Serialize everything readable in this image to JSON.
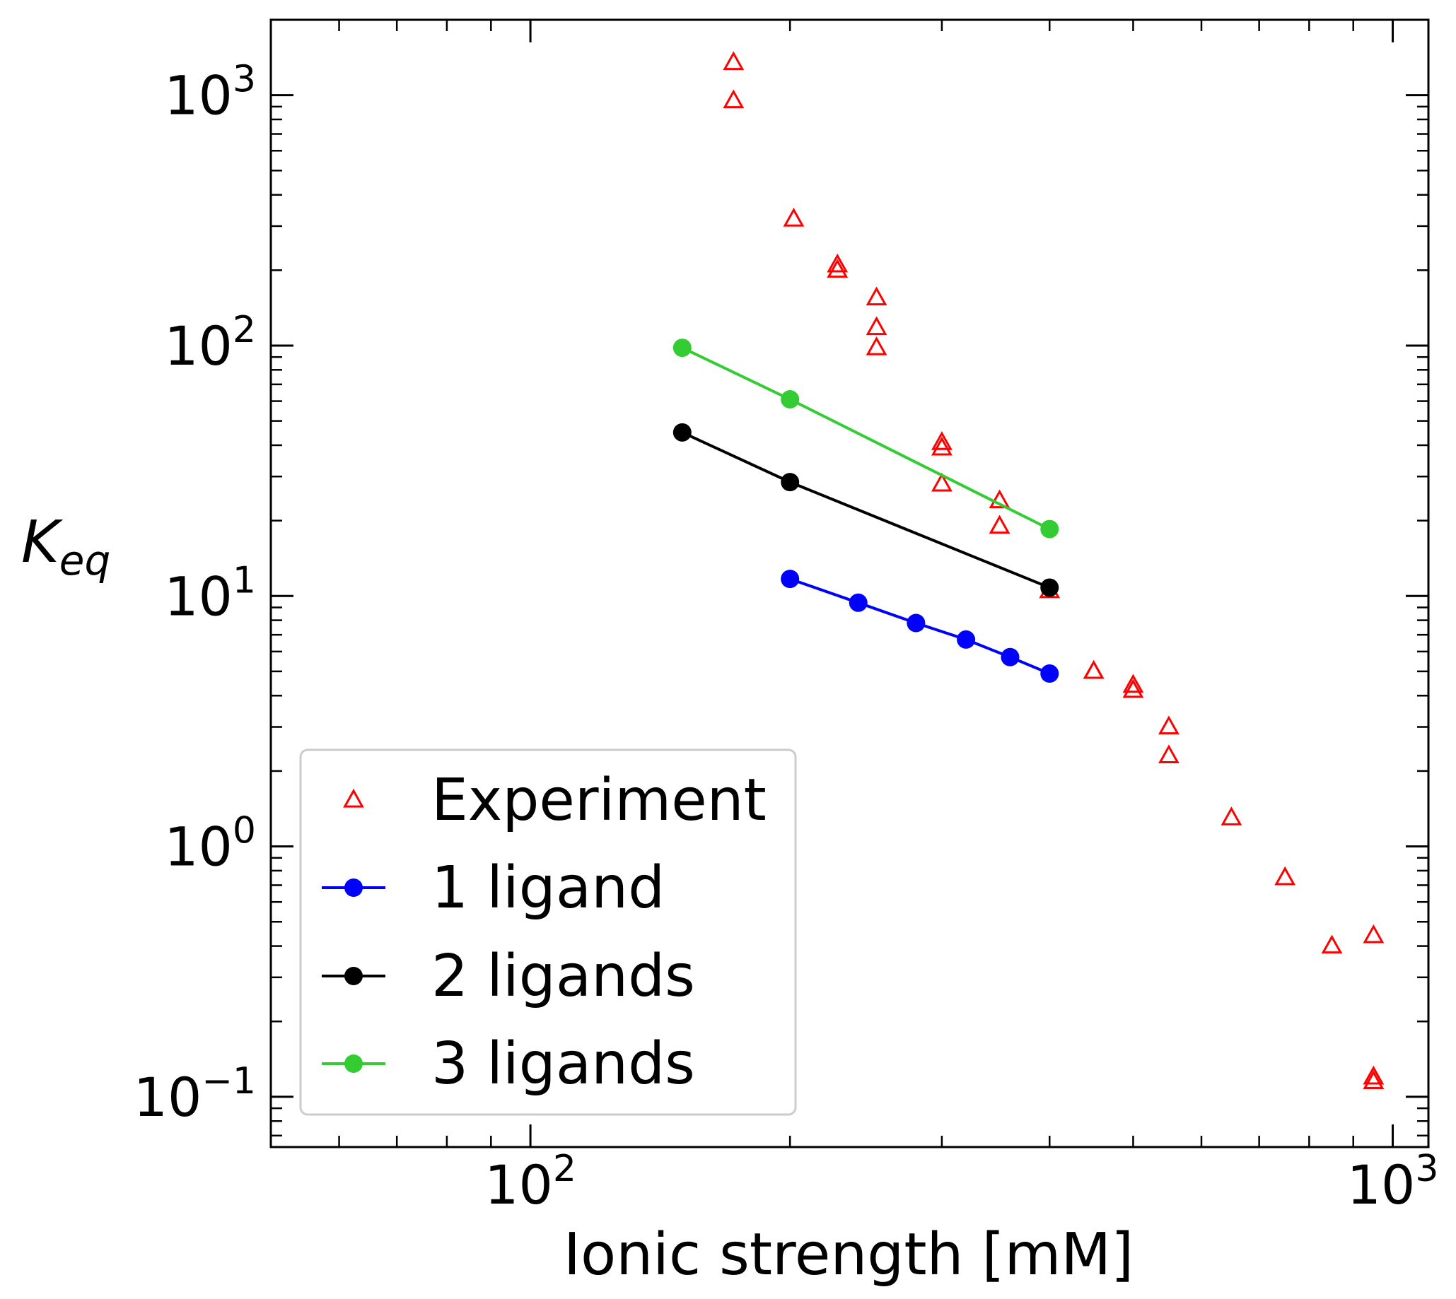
{
  "chart_data": {
    "type": "scatter",
    "title": "",
    "xlabel": "Ionic strength [mM]",
    "ylabel_base": "K",
    "ylabel_sub": "eq",
    "xscale": "log",
    "yscale": "log",
    "xlim": [
      50,
      1100
    ],
    "ylim": [
      0.063,
      2000
    ],
    "grid": false,
    "legend_position": "lower-left",
    "x_ticks": [
      {
        "value": 100,
        "base": "10",
        "exp": "2"
      },
      {
        "value": 1000,
        "base": "10",
        "exp": "3"
      }
    ],
    "y_ticks": [
      {
        "value": 0.1,
        "base": "10",
        "exp": "−1"
      },
      {
        "value": 1,
        "base": "10",
        "exp": "0"
      },
      {
        "value": 10,
        "base": "10",
        "exp": "1"
      },
      {
        "value": 100,
        "base": "10",
        "exp": "2"
      },
      {
        "value": 1000,
        "base": "10",
        "exp": "3"
      }
    ],
    "series": [
      {
        "name": "Experiment",
        "color": "#ff0000",
        "marker": "triangle-open",
        "line": false,
        "points": [
          [
            172,
            1350
          ],
          [
            172,
            950
          ],
          [
            202,
            320
          ],
          [
            227,
            210
          ],
          [
            227,
            200
          ],
          [
            252,
            155
          ],
          [
            252,
            118
          ],
          [
            252,
            98
          ],
          [
            300,
            41
          ],
          [
            300,
            39
          ],
          [
            300,
            28
          ],
          [
            350,
            24
          ],
          [
            350,
            19
          ],
          [
            400,
            10.5
          ],
          [
            450,
            5.0
          ],
          [
            450,
            5.0
          ],
          [
            500,
            4.4
          ],
          [
            500,
            4.2
          ],
          [
            550,
            3.0
          ],
          [
            550,
            2.3
          ],
          [
            650,
            1.3
          ],
          [
            750,
            0.75
          ],
          [
            850,
            0.4
          ],
          [
            950,
            0.44
          ],
          [
            950,
            0.12
          ],
          [
            950,
            0.115
          ]
        ]
      },
      {
        "name": "1 ligand",
        "color": "#0000ff",
        "marker": "circle",
        "line": true,
        "points": [
          [
            200,
            11.7
          ],
          [
            240,
            9.4
          ],
          [
            280,
            7.8
          ],
          [
            320,
            6.7
          ],
          [
            360,
            5.7
          ],
          [
            400,
            4.9
          ]
        ]
      },
      {
        "name": "2 ligands",
        "color": "#000000",
        "marker": "circle",
        "line": true,
        "points": [
          [
            150,
            45
          ],
          [
            200,
            28.5
          ],
          [
            400,
            10.8
          ]
        ]
      },
      {
        "name": "3 ligands",
        "color": "#33cc33",
        "marker": "circle",
        "line": true,
        "points": [
          [
            150,
            98
          ],
          [
            200,
            61
          ],
          [
            400,
            18.5
          ]
        ]
      }
    ]
  }
}
